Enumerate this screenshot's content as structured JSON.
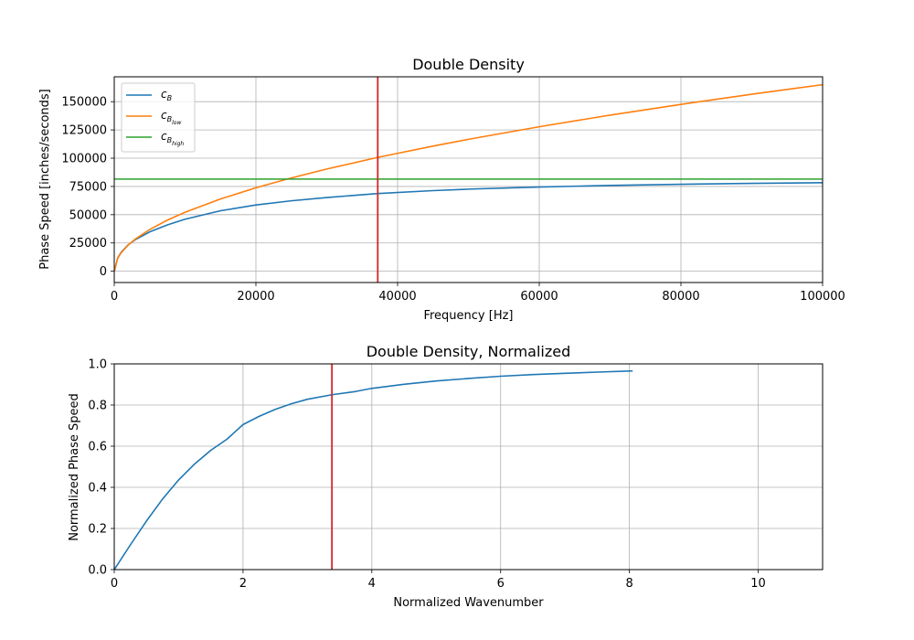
{
  "chart_data": [
    {
      "type": "line",
      "title": "Double Density",
      "xlabel": "Frequency [Hz]",
      "ylabel": "Phase Speed [inches/seconds]",
      "xlim": [
        0,
        100000
      ],
      "ylim": [
        -10000,
        172000
      ],
      "xticks": [
        0,
        20000,
        40000,
        60000,
        80000,
        100000
      ],
      "yticks": [
        0,
        25000,
        50000,
        75000,
        100000,
        125000,
        150000
      ],
      "grid": true,
      "legend_position": "top-left",
      "vline": {
        "x": 37200,
        "color": "#d62728"
      },
      "series": [
        {
          "name": "c_B",
          "legend_base": "c",
          "legend_sub": "B",
          "color": "#1f77b4",
          "x": [
            0,
            500,
            1000,
            2000,
            3000,
            5000,
            7500,
            10000,
            15000,
            20000,
            25000,
            30000,
            37200,
            45000,
            50000,
            60000,
            70000,
            80000,
            90000,
            100000
          ],
          "y": [
            0,
            12000,
            17000,
            23500,
            28000,
            34800,
            41000,
            46000,
            53500,
            58600,
            62300,
            65200,
            68700,
            71300,
            72600,
            74500,
            75900,
            76900,
            77700,
            78300
          ]
        },
        {
          "name": "c_B_low",
          "legend_base": "c",
          "legend_sub": "B",
          "legend_subsub": "low",
          "color": "#ff7f0e",
          "x": [
            0,
            500,
            1000,
            2000,
            3000,
            5000,
            7500,
            10000,
            15000,
            20000,
            25000,
            30000,
            37200,
            45000,
            50000,
            60000,
            70000,
            80000,
            90000,
            100000
          ],
          "y": [
            0,
            11700,
            16500,
            23300,
            28600,
            36900,
            45200,
            52200,
            63900,
            73800,
            82500,
            90400,
            100700,
            110700,
            116700,
            127800,
            138100,
            147600,
            156600,
            165000
          ]
        },
        {
          "name": "c_B_high",
          "legend_base": "c",
          "legend_sub": "B",
          "legend_subsub": "high",
          "color": "#2ca02c",
          "x": [
            0,
            100000
          ],
          "y": [
            81500,
            81500
          ]
        }
      ]
    },
    {
      "type": "line",
      "title": "Double Density, Normalized",
      "xlabel": "Normalized Wavenumber",
      "ylabel": "Normalized Phase Speed",
      "xlim": [
        0,
        11
      ],
      "ylim": [
        0,
        1
      ],
      "xticks": [
        0,
        2,
        4,
        6,
        8,
        10
      ],
      "yticks": [
        0.0,
        0.2,
        0.4,
        0.6,
        0.8,
        1.0
      ],
      "ytick_labels": [
        "0.0",
        "0.2",
        "0.4",
        "0.6",
        "0.8",
        "1.0"
      ],
      "grid": true,
      "vline": {
        "x": 3.38,
        "color": "#d62728"
      },
      "series": [
        {
          "color": "#1f77b4",
          "x": [
            0,
            0.25,
            0.5,
            0.75,
            1.0,
            1.25,
            1.5,
            1.75,
            2.0,
            2.25,
            2.5,
            2.75,
            3.0,
            3.38,
            3.75,
            4.0,
            4.5,
            5.0,
            5.5,
            6.0,
            6.5,
            7.0,
            7.5,
            8.05
          ],
          "y": [
            0,
            0.12,
            0.236,
            0.343,
            0.436,
            0.514,
            0.58,
            0.634,
            0.705,
            0.745,
            0.779,
            0.806,
            0.828,
            0.85,
            0.866,
            0.881,
            0.901,
            0.917,
            0.929,
            0.94,
            0.948,
            0.954,
            0.96,
            0.966
          ]
        }
      ]
    }
  ]
}
